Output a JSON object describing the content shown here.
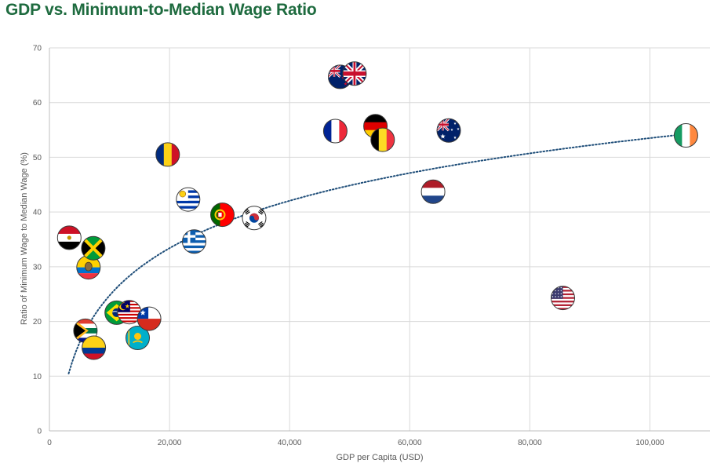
{
  "chart_data": {
    "type": "scatter",
    "title": "GDP vs. Minimum-to-Median Wage Ratio",
    "xlabel": "GDP per Capita (USD)",
    "ylabel": "Ratio of Minimum Wage to Median Wage (%)",
    "xlim": [
      0,
      110000
    ],
    "ylim": [
      0,
      70
    ],
    "x_ticks": [
      0,
      20000,
      40000,
      60000,
      80000,
      100000
    ],
    "x_tick_labels": [
      "0",
      "20,000",
      "40,000",
      "60,000",
      "80,000",
      "100,000"
    ],
    "y_ticks": [
      0,
      10,
      20,
      30,
      40,
      50,
      60,
      70
    ],
    "y_tick_labels": [
      "0",
      "10",
      "20",
      "30",
      "40",
      "50",
      "60",
      "70"
    ],
    "grid": "vertical and horizontal",
    "legend": "none",
    "trendline": {
      "type": "logarithmic",
      "style": "dotted",
      "color": "#1f4e79",
      "x_range": [
        3200,
        106000
      ],
      "a": 12.5,
      "b": -90.4
    },
    "points": [
      {
        "flag": "egypt",
        "x": 3300,
        "y": 35.3
      },
      {
        "flag": "south-africa",
        "x": 6000,
        "y": 18.3
      },
      {
        "flag": "ecuador",
        "x": 6500,
        "y": 29.9
      },
      {
        "flag": "jamaica",
        "x": 7300,
        "y": 33.4
      },
      {
        "flag": "colombia",
        "x": 7400,
        "y": 15.2
      },
      {
        "flag": "brazil",
        "x": 11200,
        "y": 21.6
      },
      {
        "flag": "malaysia",
        "x": 13300,
        "y": 21.7
      },
      {
        "flag": "kazakhstan",
        "x": 14700,
        "y": 17.0
      },
      {
        "flag": "chile",
        "x": 16600,
        "y": 20.5
      },
      {
        "flag": "romania",
        "x": 19700,
        "y": 50.5
      },
      {
        "flag": "uruguay",
        "x": 23100,
        "y": 42.3
      },
      {
        "flag": "greece",
        "x": 24100,
        "y": 34.6
      },
      {
        "flag": "portugal",
        "x": 28800,
        "y": 39.5
      },
      {
        "flag": "south-korea",
        "x": 34100,
        "y": 38.9
      },
      {
        "flag": "france",
        "x": 47600,
        "y": 54.8
      },
      {
        "flag": "new-zealand",
        "x": 48400,
        "y": 64.7
      },
      {
        "flag": "united-kingdom",
        "x": 50800,
        "y": 65.3
      },
      {
        "flag": "germany",
        "x": 54300,
        "y": 55.7
      },
      {
        "flag": "belgium",
        "x": 55500,
        "y": 53.2
      },
      {
        "flag": "netherlands",
        "x": 63900,
        "y": 43.7
      },
      {
        "flag": "australia",
        "x": 66500,
        "y": 54.9
      },
      {
        "flag": "united-states",
        "x": 85500,
        "y": 24.3
      },
      {
        "flag": "ireland",
        "x": 106000,
        "y": 54.0
      }
    ]
  }
}
